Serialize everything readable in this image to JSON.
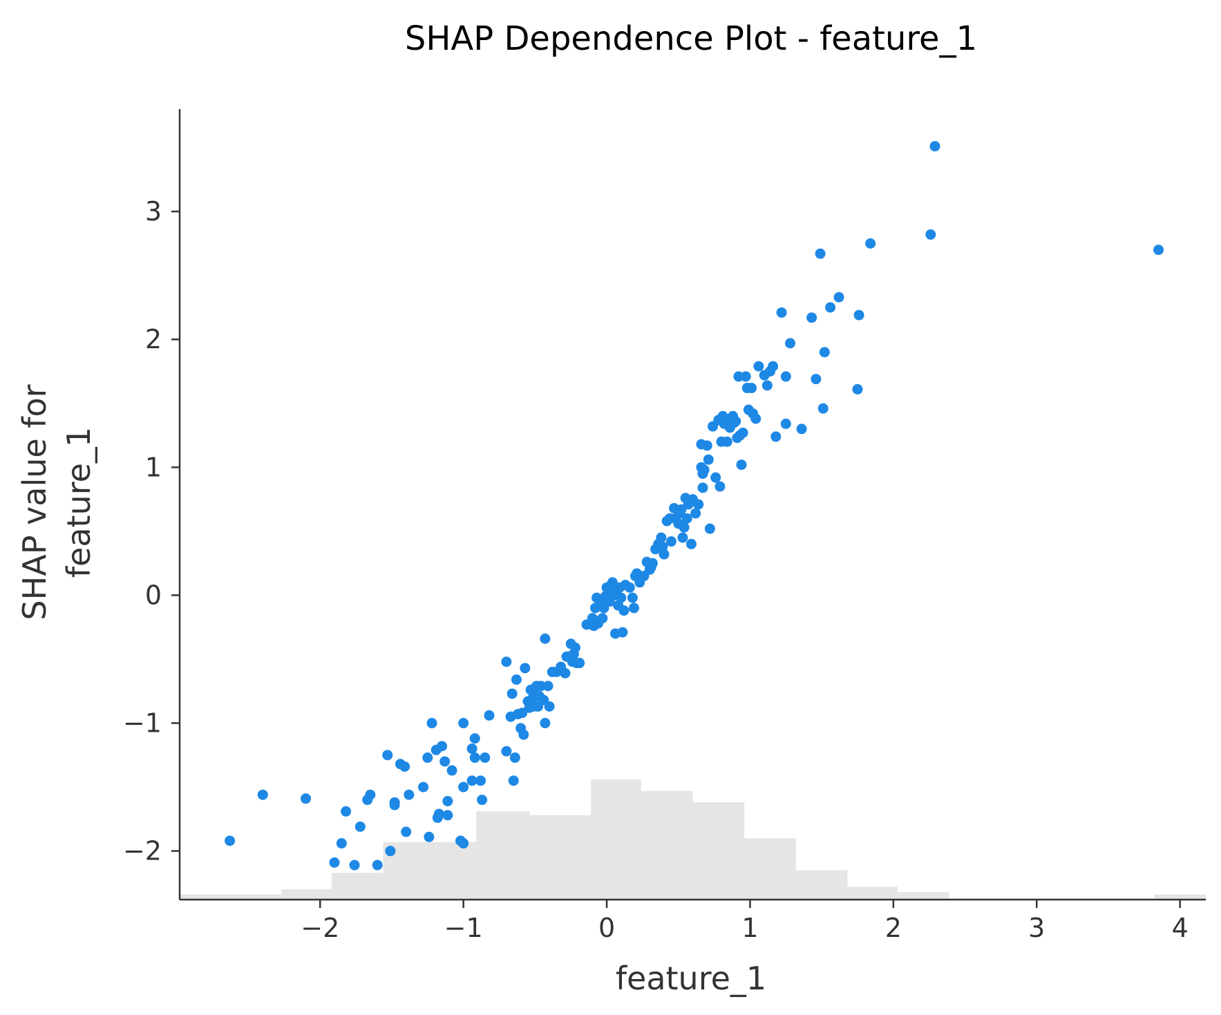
{
  "chart_data": {
    "type": "scatter",
    "title": "SHAP Dependence Plot - feature_1",
    "xlabel": "feature_1",
    "ylabel_lines": [
      "SHAP value for",
      "feature_1"
    ],
    "xlim": [
      -2.98,
      4.18
    ],
    "ylim": [
      -2.38,
      3.8
    ],
    "xticks": [
      {
        "value": -2,
        "label": "−2"
      },
      {
        "value": -1,
        "label": "−1"
      },
      {
        "value": 0,
        "label": "0"
      },
      {
        "value": 1,
        "label": "1"
      },
      {
        "value": 2,
        "label": "2"
      },
      {
        "value": 3,
        "label": "3"
      },
      {
        "value": 4,
        "label": "4"
      }
    ],
    "yticks": [
      {
        "value": -2,
        "label": "−2"
      },
      {
        "value": -1,
        "label": "−1"
      },
      {
        "value": 0,
        "label": "0"
      },
      {
        "value": 1,
        "label": "1"
      },
      {
        "value": 2,
        "label": "2"
      },
      {
        "value": 3,
        "label": "3"
      }
    ],
    "point_color": "#1e88e5",
    "histogram_color": "#e5e5e5",
    "axis_color": "#333333",
    "histogram": {
      "baseline": -2.38,
      "bins": [
        {
          "x0": -2.98,
          "x1": -2.27,
          "top": -2.34
        },
        {
          "x0": -2.27,
          "x1": -1.92,
          "top": -2.3
        },
        {
          "x0": -1.92,
          "x1": -1.56,
          "top": -2.17
        },
        {
          "x0": -1.56,
          "x1": -0.91,
          "top": -1.93
        },
        {
          "x0": -0.91,
          "x1": -0.54,
          "top": -1.69
        },
        {
          "x0": -0.54,
          "x1": -0.11,
          "top": -1.72
        },
        {
          "x0": -0.11,
          "x1": 0.24,
          "top": -1.44
        },
        {
          "x0": 0.24,
          "x1": 0.6,
          "top": -1.53
        },
        {
          "x0": 0.6,
          "x1": 0.96,
          "top": -1.62
        },
        {
          "x0": 0.96,
          "x1": 1.32,
          "top": -1.9
        },
        {
          "x0": 1.32,
          "x1": 1.68,
          "top": -2.15
        },
        {
          "x0": 1.68,
          "x1": 2.03,
          "top": -2.28
        },
        {
          "x0": 2.03,
          "x1": 2.39,
          "top": -2.32
        },
        {
          "x0": 2.39,
          "x1": 3.82,
          "top": -2.37
        },
        {
          "x0": 3.82,
          "x1": 4.18,
          "top": -2.34
        }
      ]
    },
    "points": [
      [
        -2.63,
        -1.92
      ],
      [
        -2.4,
        -1.56
      ],
      [
        -2.1,
        -1.59
      ],
      [
        -1.9,
        -2.09
      ],
      [
        -1.85,
        -1.94
      ],
      [
        -1.82,
        -1.69
      ],
      [
        -1.76,
        -2.11
      ],
      [
        -1.72,
        -1.81
      ],
      [
        -1.67,
        -1.6
      ],
      [
        -1.65,
        -1.56
      ],
      [
        -1.6,
        -2.11
      ],
      [
        -1.53,
        -1.25
      ],
      [
        -1.51,
        -2.0
      ],
      [
        -1.48,
        -1.62
      ],
      [
        -1.48,
        -1.64
      ],
      [
        -1.44,
        -1.32
      ],
      [
        -1.41,
        -1.34
      ],
      [
        -1.4,
        -1.85
      ],
      [
        -1.38,
        -1.56
      ],
      [
        -1.28,
        -1.5
      ],
      [
        -1.25,
        -1.27
      ],
      [
        -1.24,
        -1.89
      ],
      [
        -1.22,
        -1.0
      ],
      [
        -1.19,
        -1.21
      ],
      [
        -1.18,
        -1.74
      ],
      [
        -1.17,
        -1.71
      ],
      [
        -1.15,
        -1.18
      ],
      [
        -1.13,
        -1.3
      ],
      [
        -1.11,
        -1.61
      ],
      [
        -1.11,
        -1.72
      ],
      [
        -1.08,
        -1.37
      ],
      [
        -1.02,
        -1.92
      ],
      [
        -1.0,
        -1.0
      ],
      [
        -1.0,
        -1.5
      ],
      [
        -1.0,
        -1.94
      ],
      [
        -0.94,
        -1.2
      ],
      [
        -0.94,
        -1.45
      ],
      [
        -0.92,
        -1.12
      ],
      [
        -0.92,
        -1.27
      ],
      [
        -0.88,
        -1.45
      ],
      [
        -0.87,
        -1.6
      ],
      [
        -0.85,
        -1.27
      ],
      [
        -0.82,
        -0.94
      ],
      [
        -0.7,
        -0.52
      ],
      [
        -0.7,
        -1.22
      ],
      [
        -0.67,
        -0.95
      ],
      [
        -0.66,
        -0.77
      ],
      [
        -0.65,
        -1.45
      ],
      [
        -0.64,
        -1.27
      ],
      [
        -0.63,
        -0.66
      ],
      [
        -0.62,
        -0.93
      ],
      [
        -0.6,
        -1.04
      ],
      [
        -0.59,
        -0.92
      ],
      [
        -0.58,
        -1.09
      ],
      [
        -0.57,
        -0.57
      ],
      [
        -0.55,
        -0.83
      ],
      [
        -0.54,
        -0.88
      ],
      [
        -0.53,
        -0.74
      ],
      [
        -0.52,
        -0.81
      ],
      [
        -0.51,
        -0.87
      ],
      [
        -0.5,
        -0.78
      ],
      [
        -0.49,
        -0.71
      ],
      [
        -0.48,
        -0.87
      ],
      [
        -0.47,
        -0.79
      ],
      [
        -0.46,
        -0.71
      ],
      [
        -0.44,
        -0.82
      ],
      [
        -0.43,
        -0.34
      ],
      [
        -0.43,
        -1.0
      ],
      [
        -0.41,
        -0.71
      ],
      [
        -0.4,
        -0.87
      ],
      [
        -0.38,
        -0.6
      ],
      [
        -0.35,
        -0.6
      ],
      [
        -0.32,
        -0.56
      ],
      [
        -0.29,
        -0.61
      ],
      [
        -0.28,
        -0.48
      ],
      [
        -0.26,
        -0.48
      ],
      [
        -0.25,
        -0.38
      ],
      [
        -0.24,
        -0.52
      ],
      [
        -0.23,
        -0.46
      ],
      [
        -0.22,
        -0.41
      ],
      [
        -0.21,
        -0.53
      ],
      [
        -0.19,
        -0.53
      ],
      [
        -0.14,
        -0.23
      ],
      [
        -0.1,
        -0.18
      ],
      [
        -0.09,
        -0.24
      ],
      [
        -0.08,
        -0.1
      ],
      [
        -0.07,
        -0.02
      ],
      [
        -0.06,
        -0.22
      ],
      [
        -0.05,
        -0.08
      ],
      [
        -0.04,
        -0.06
      ],
      [
        -0.03,
        -0.18
      ],
      [
        -0.02,
        -0.1
      ],
      [
        -0.01,
        -0.01
      ],
      [
        0.0,
        0.06
      ],
      [
        0.01,
        0.03
      ],
      [
        0.02,
        -0.05
      ],
      [
        0.03,
        0.08
      ],
      [
        0.04,
        0.1
      ],
      [
        0.05,
        0.0
      ],
      [
        0.06,
        -0.3
      ],
      [
        0.07,
        0.04
      ],
      [
        0.08,
        -0.08
      ],
      [
        0.09,
        0.06
      ],
      [
        0.1,
        -0.02
      ],
      [
        0.11,
        -0.29
      ],
      [
        0.12,
        -0.12
      ],
      [
        0.13,
        0.08
      ],
      [
        0.16,
        0.06
      ],
      [
        0.18,
        -0.02
      ],
      [
        0.19,
        -0.1
      ],
      [
        0.2,
        0.15
      ],
      [
        0.21,
        0.17
      ],
      [
        0.23,
        0.1
      ],
      [
        0.26,
        0.15
      ],
      [
        0.28,
        0.26
      ],
      [
        0.3,
        0.2
      ],
      [
        0.31,
        0.22
      ],
      [
        0.32,
        0.25
      ],
      [
        0.34,
        0.36
      ],
      [
        0.36,
        0.4
      ],
      [
        0.37,
        0.38
      ],
      [
        0.38,
        0.45
      ],
      [
        0.39,
        0.38
      ],
      [
        0.4,
        0.32
      ],
      [
        0.42,
        0.58
      ],
      [
        0.44,
        0.6
      ],
      [
        0.45,
        0.42
      ],
      [
        0.47,
        0.68
      ],
      [
        0.48,
        0.6
      ],
      [
        0.5,
        0.56
      ],
      [
        0.51,
        0.64
      ],
      [
        0.52,
        0.67
      ],
      [
        0.53,
        0.45
      ],
      [
        0.54,
        0.53
      ],
      [
        0.55,
        0.76
      ],
      [
        0.56,
        0.6
      ],
      [
        0.57,
        0.71
      ],
      [
        0.59,
        0.4
      ],
      [
        0.6,
        0.75
      ],
      [
        0.62,
        0.64
      ],
      [
        0.64,
        0.71
      ],
      [
        0.66,
        1.0
      ],
      [
        0.66,
        1.18
      ],
      [
        0.67,
        0.95
      ],
      [
        0.67,
        0.84
      ],
      [
        0.68,
        0.98
      ],
      [
        0.7,
        1.17
      ],
      [
        0.71,
        1.06
      ],
      [
        0.72,
        0.52
      ],
      [
        0.74,
        1.32
      ],
      [
        0.76,
        0.92
      ],
      [
        0.78,
        1.37
      ],
      [
        0.79,
        0.85
      ],
      [
        0.8,
        1.2
      ],
      [
        0.81,
        1.4
      ],
      [
        0.82,
        1.34
      ],
      [
        0.83,
        1.38
      ],
      [
        0.84,
        1.2
      ],
      [
        0.86,
        1.31
      ],
      [
        0.88,
        1.4
      ],
      [
        0.89,
        1.35
      ],
      [
        0.9,
        1.36
      ],
      [
        0.91,
        1.23
      ],
      [
        0.92,
        1.71
      ],
      [
        0.93,
        1.25
      ],
      [
        0.94,
        1.02
      ],
      [
        0.95,
        1.27
      ],
      [
        0.97,
        1.71
      ],
      [
        0.98,
        1.62
      ],
      [
        0.99,
        1.45
      ],
      [
        1.01,
        1.62
      ],
      [
        1.02,
        1.42
      ],
      [
        1.04,
        1.38
      ],
      [
        1.06,
        1.79
      ],
      [
        1.1,
        1.72
      ],
      [
        1.12,
        1.64
      ],
      [
        1.14,
        1.75
      ],
      [
        1.16,
        1.79
      ],
      [
        1.18,
        1.24
      ],
      [
        1.22,
        2.21
      ],
      [
        1.25,
        1.34
      ],
      [
        1.25,
        1.71
      ],
      [
        1.28,
        1.97
      ],
      [
        1.36,
        1.3
      ],
      [
        1.43,
        2.17
      ],
      [
        1.46,
        1.69
      ],
      [
        1.49,
        2.67
      ],
      [
        1.51,
        1.46
      ],
      [
        1.52,
        1.9
      ],
      [
        1.56,
        2.25
      ],
      [
        1.62,
        2.33
      ],
      [
        1.75,
        1.61
      ],
      [
        1.76,
        2.19
      ],
      [
        1.84,
        2.75
      ],
      [
        2.26,
        2.82
      ],
      [
        2.29,
        3.51
      ],
      [
        3.85,
        2.7
      ]
    ]
  }
}
